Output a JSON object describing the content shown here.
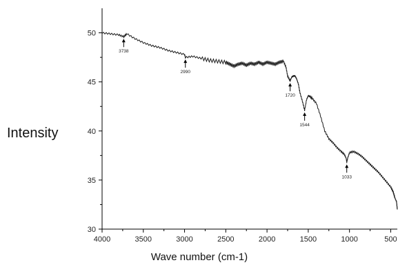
{
  "chart_data": {
    "type": "line",
    "title": "",
    "xlabel": "Wave number (cm-1)",
    "ylabel": "Intensity",
    "xlim": [
      4000,
      420
    ],
    "ylim": [
      30,
      52.5
    ],
    "x_reversed": true,
    "grid": false,
    "x_ticks": [
      4000,
      3500,
      3000,
      2500,
      2000,
      1500,
      1000,
      500
    ],
    "y_ticks": [
      30,
      35,
      40,
      45,
      50
    ],
    "series": [
      {
        "x": [
          4000,
          3900,
          3800,
          3738,
          3700,
          3600,
          3500,
          3400,
          3300,
          3200,
          3100,
          3000,
          2990,
          2900,
          2800,
          2700,
          2600,
          2500,
          2450,
          2400,
          2350,
          2300,
          2250,
          2200,
          2150,
          2100,
          2050,
          2000,
          1950,
          1900,
          1850,
          1800,
          1770,
          1750,
          1720,
          1700,
          1680,
          1660,
          1640,
          1620,
          1600,
          1570,
          1544,
          1520,
          1500,
          1480,
          1450,
          1400,
          1350,
          1300,
          1250,
          1200,
          1150,
          1100,
          1060,
          1040,
          1033,
          1020,
          1000,
          950,
          900,
          850,
          800,
          750,
          700,
          650,
          600,
          550,
          500,
          470,
          450,
          430,
          420
        ],
        "y": [
          50.0,
          49.9,
          49.8,
          49.6,
          49.9,
          49.4,
          49.0,
          48.7,
          48.5,
          48.2,
          48.0,
          47.8,
          47.5,
          47.6,
          47.4,
          47.2,
          47.1,
          47.0,
          46.8,
          46.6,
          46.8,
          46.9,
          46.7,
          46.9,
          46.8,
          47.0,
          46.8,
          47.0,
          46.9,
          46.8,
          47.0,
          47.1,
          46.5,
          45.6,
          45.1,
          45.5,
          45.6,
          45.6,
          45.3,
          44.8,
          43.9,
          43.0,
          42.1,
          43.2,
          43.6,
          43.5,
          43.3,
          42.8,
          41.5,
          40.0,
          39.2,
          38.8,
          38.3,
          37.9,
          37.6,
          37.2,
          36.8,
          37.3,
          37.8,
          37.9,
          37.7,
          37.4,
          37.0,
          36.6,
          36.2,
          35.8,
          35.3,
          34.8,
          34.3,
          33.8,
          33.2,
          32.8,
          32.0
        ]
      }
    ],
    "annotations": [
      {
        "label": "3738",
        "x": 3738,
        "y": 49.6
      },
      {
        "label": "2990",
        "x": 2990,
        "y": 47.5
      },
      {
        "label": "1720",
        "x": 1720,
        "y": 45.1
      },
      {
        "label": "1544",
        "x": 1544,
        "y": 42.1
      },
      {
        "label": "1033",
        "x": 1033,
        "y": 36.8
      }
    ]
  }
}
